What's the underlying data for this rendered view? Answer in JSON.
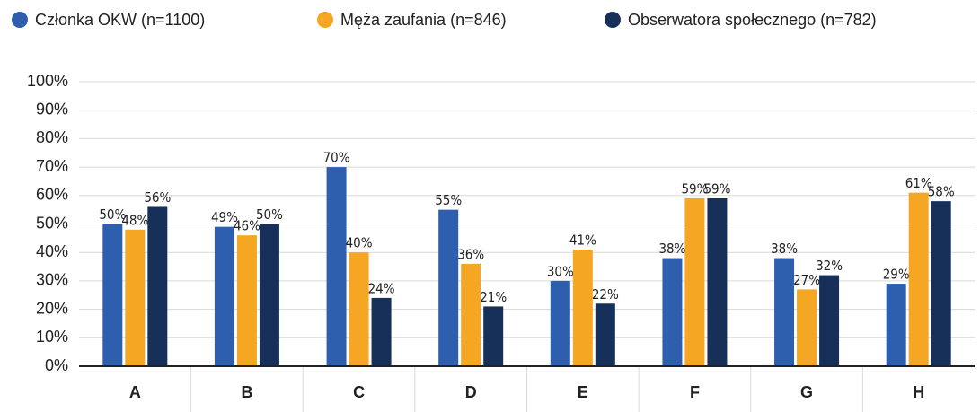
{
  "chart_data": {
    "type": "bar",
    "categories": [
      "A",
      "B",
      "C",
      "D",
      "E",
      "F",
      "G",
      "H"
    ],
    "series": [
      {
        "name": "Członka OKW (n=1100)",
        "color": "#2e5fae",
        "values": [
          50,
          49,
          70,
          55,
          30,
          38,
          38,
          29
        ],
        "value_labels": [
          "50%",
          "49%",
          "70%",
          "55%",
          "30%",
          "38%",
          "38%",
          "29%"
        ]
      },
      {
        "name": "Męża zaufania (n=846)",
        "color": "#f5a623",
        "values": [
          48,
          46,
          40,
          36,
          41,
          59,
          27,
          61
        ],
        "value_labels": [
          "48%",
          "46%",
          "40%",
          "36%",
          "41%",
          "59%",
          "27%",
          "61%"
        ]
      },
      {
        "name": "Obserwatora społecznego (n=782)",
        "color": "#17305a",
        "values": [
          56,
          50,
          24,
          21,
          22,
          59,
          32,
          58
        ],
        "value_labels": [
          "56%",
          "50%",
          "24%",
          "21%",
          "22%",
          "59%",
          "32%",
          "58%"
        ]
      }
    ],
    "ylim": [
      0,
      100
    ],
    "yticks": [
      {
        "value": 0,
        "label": "0%"
      },
      {
        "value": 10,
        "label": "10%"
      },
      {
        "value": 20,
        "label": "20%"
      },
      {
        "value": 30,
        "label": "30%"
      },
      {
        "value": 40,
        "label": "40%"
      },
      {
        "value": 50,
        "label": "50%"
      },
      {
        "value": 60,
        "label": "60%"
      },
      {
        "value": 70,
        "label": "70%"
      },
      {
        "value": 80,
        "label": "80%"
      },
      {
        "value": 90,
        "label": "90%"
      },
      {
        "value": 100,
        "label": "100%"
      }
    ],
    "grid": true,
    "legend": "top"
  }
}
